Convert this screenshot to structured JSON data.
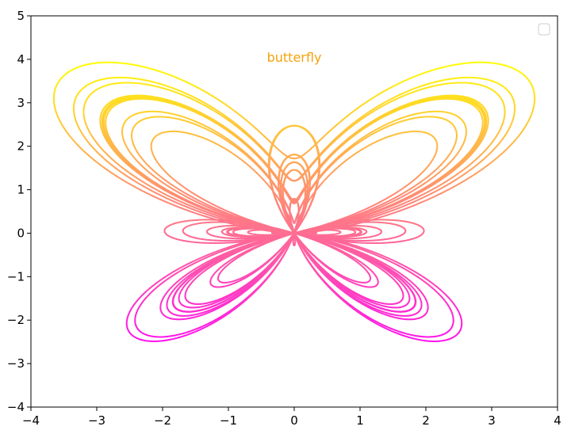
{
  "chart_data": {
    "type": "line",
    "title": "",
    "xlabel": "",
    "ylabel": "",
    "xlim": [
      -4,
      4
    ],
    "ylim": [
      -4,
      5
    ],
    "xticks": [
      -4,
      -3,
      -2,
      -1,
      0,
      1,
      2,
      3,
      4
    ],
    "yticks": [
      -4,
      -3,
      -2,
      -1,
      0,
      1,
      2,
      3,
      4,
      5
    ],
    "xtick_labels": [
      "−4",
      "−3",
      "−2",
      "−1",
      "0",
      "1",
      "2",
      "3",
      "4"
    ],
    "ytick_labels": [
      "−4",
      "−3",
      "−2",
      "−1",
      "0",
      "1",
      "2",
      "3",
      "4",
      "5"
    ],
    "grid": false,
    "legend": {
      "placement": "top-right",
      "entries": []
    },
    "annotation": {
      "text": "butterfly",
      "x": 0,
      "y": 4.05,
      "color": "#f5a20a"
    },
    "series": [
      {
        "curve": "butterfly",
        "equation": "x = sin(t)·(e^cos(t) − 2cos(4t) − sin^5(t/12)), y = cos(t)·(e^cos(t) − 2cos(4t) − sin^5(t/12))",
        "t_range": [
          0,
          75.4
        ],
        "colormap": "spring",
        "color_by": "y",
        "color_low": "#ff00ff",
        "color_high": "#ffff00"
      }
    ]
  }
}
